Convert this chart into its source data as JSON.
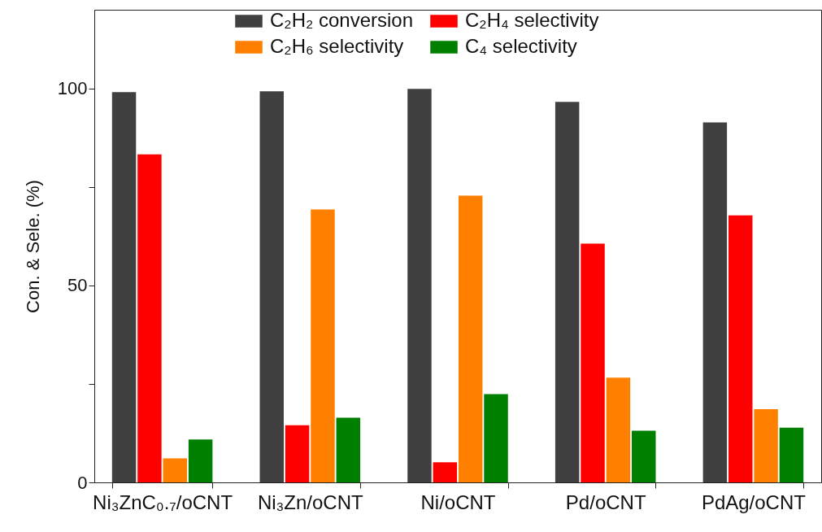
{
  "chart_data": {
    "type": "bar",
    "ylabel": "Con. & Sele. (%)",
    "categories": [
      "Ni₃ZnC₀.₇/oCNT",
      "Ni₃Zn/oCNT",
      "Ni/oCNT",
      "Pd/oCNT",
      "PdAg/oCNT"
    ],
    "series": [
      {
        "name": "C₂H₂ conversion",
        "color": "#404040",
        "values": [
          99.1,
          99.3,
          99.9,
          96.6,
          91.4
        ]
      },
      {
        "name": "C₂H₄ selectivity",
        "color": "#ff0000",
        "values": [
          83.3,
          14.5,
          5.1,
          60.6,
          67.8
        ]
      },
      {
        "name": "C₂H₆ selectivity",
        "color": "#ff8000",
        "values": [
          6.1,
          69.3,
          72.8,
          26.6,
          18.6
        ]
      },
      {
        "name": "C₄ selectivity",
        "color": "#008000",
        "values": [
          10.9,
          16.4,
          22.4,
          13.1,
          13.9
        ]
      }
    ],
    "ylim": [
      0,
      120
    ],
    "yticks": [
      0,
      {
        "value": 25,
        "label": null
      },
      50,
      {
        "value": 75,
        "label": null
      },
      100
    ],
    "legend": "top"
  }
}
